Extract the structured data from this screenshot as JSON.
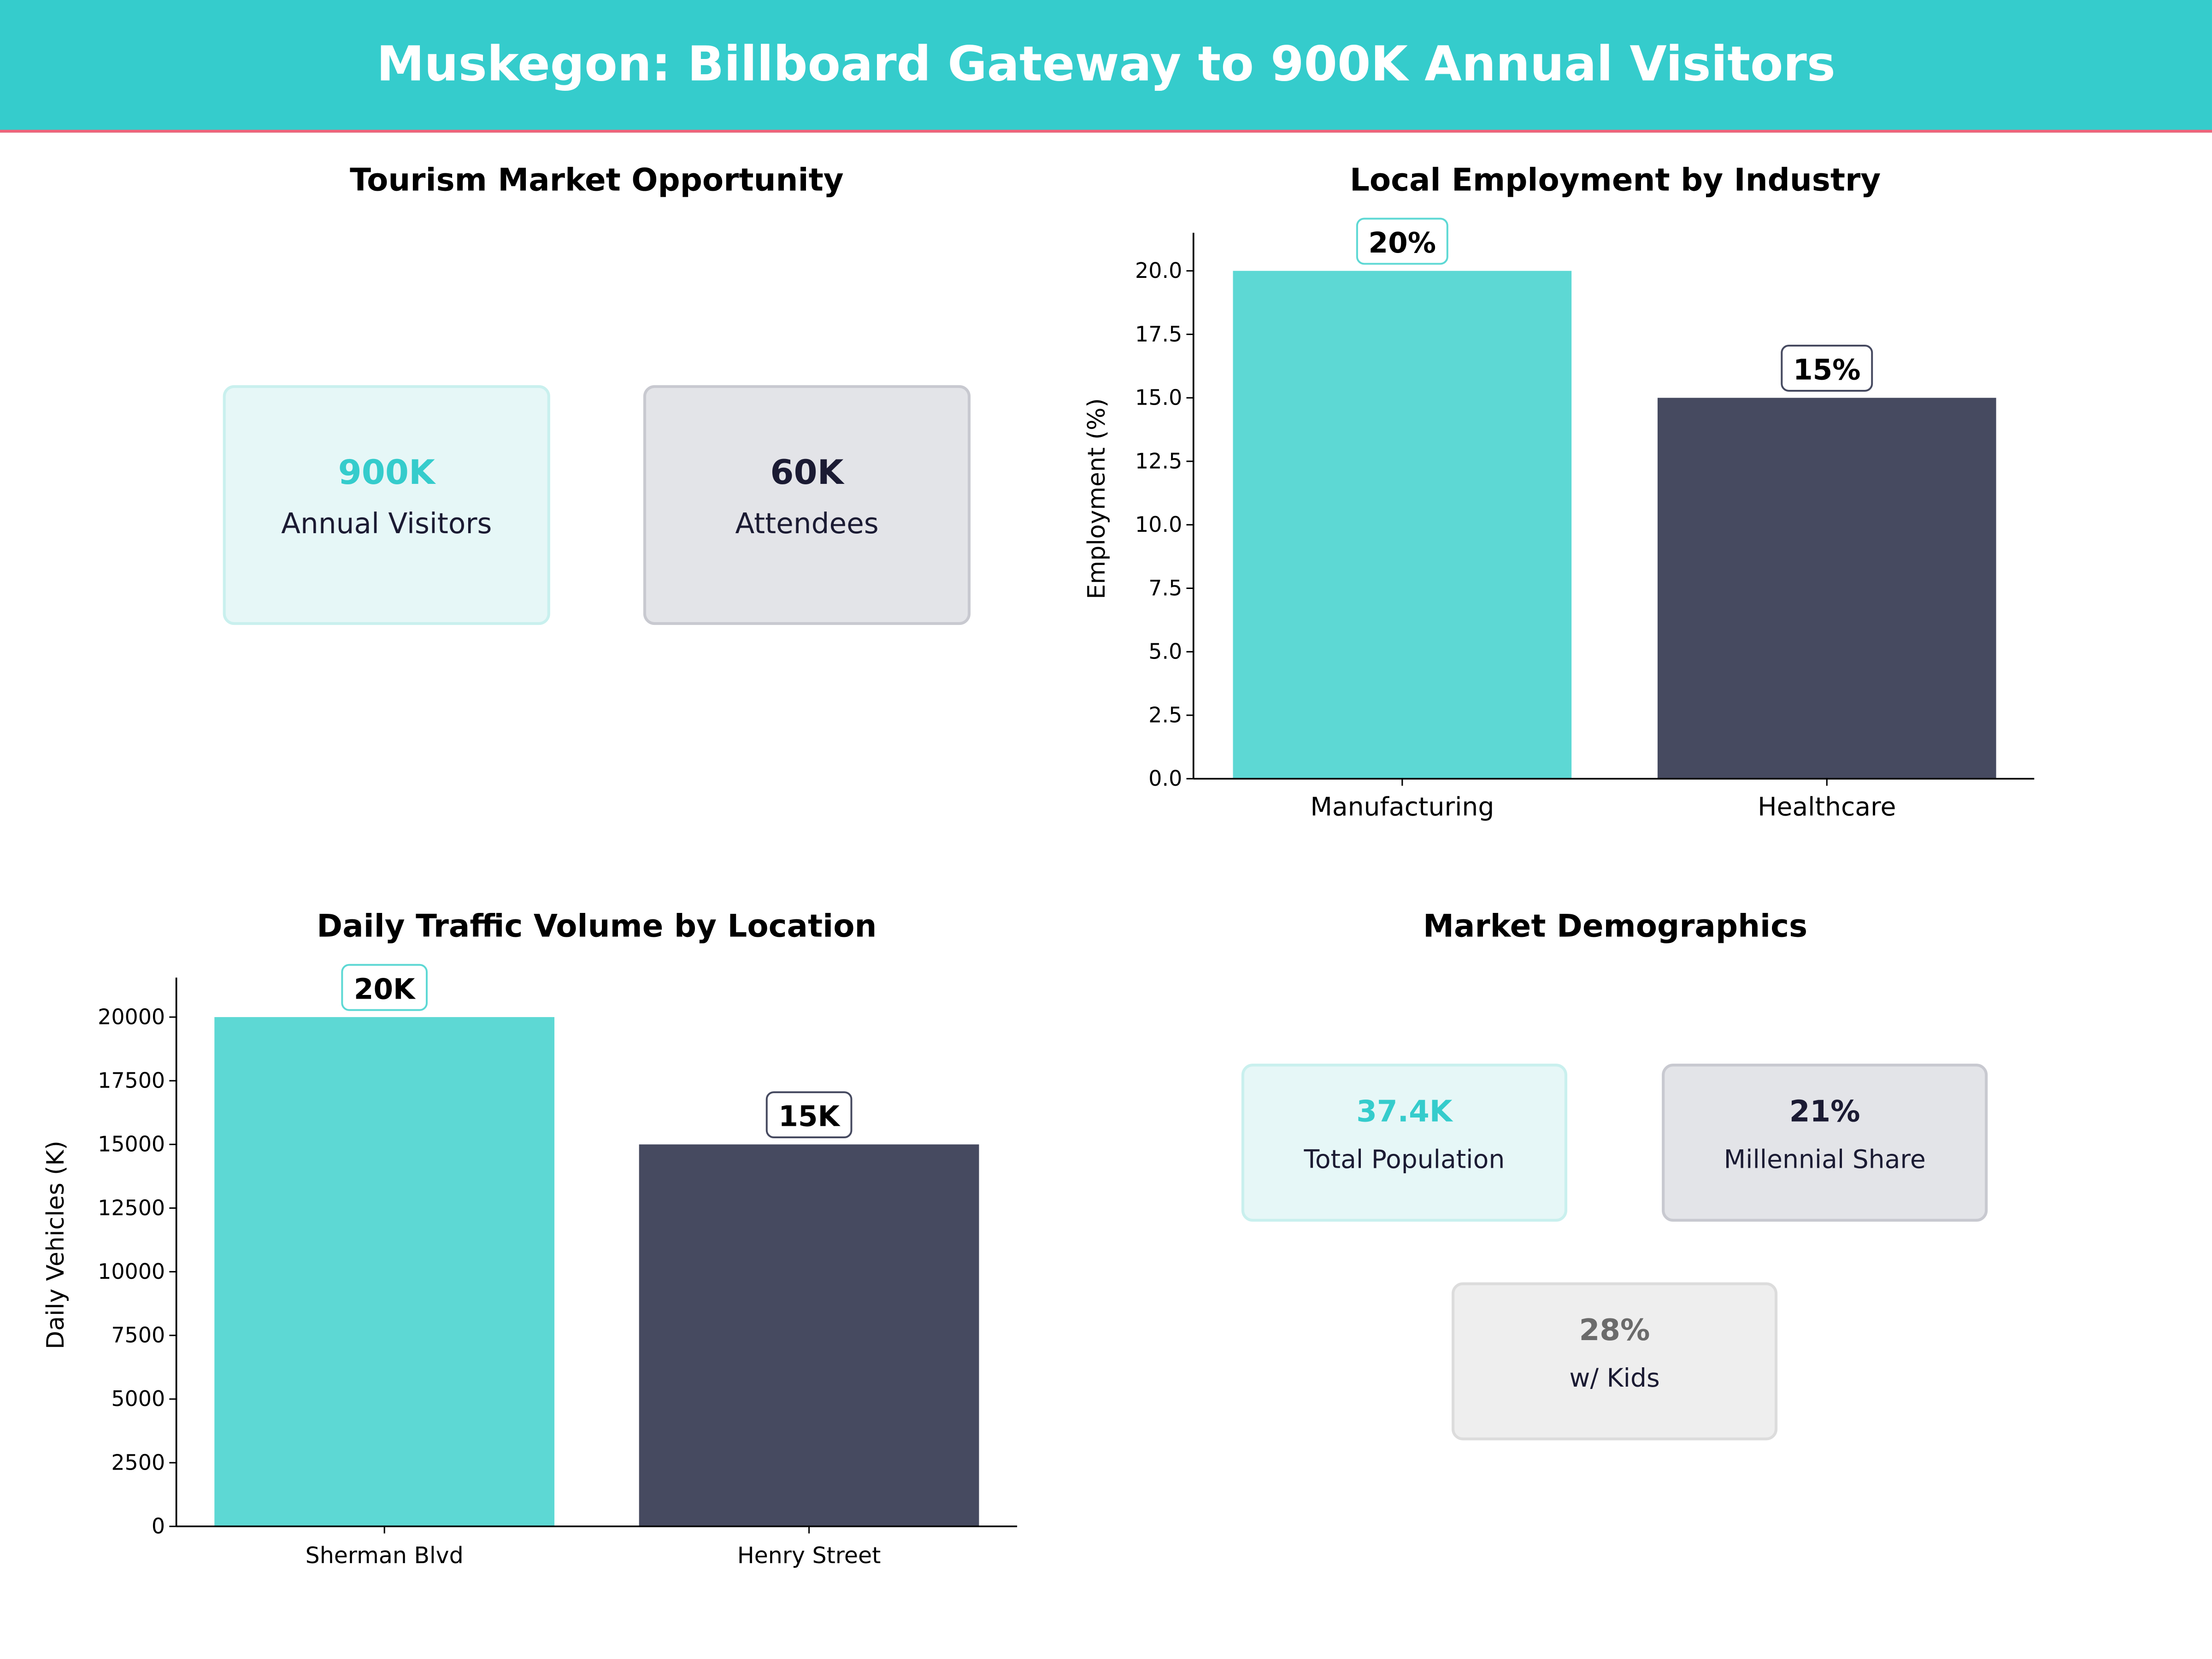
{
  "header": {
    "title": "Muskegon: Billboard Gateway to 900K Annual Visitors"
  },
  "colors": {
    "header": "#35cccc",
    "accent_line": "#f0637a",
    "teal": "#5dd8d4",
    "navy": "#464a60",
    "teal_text": "#35cccc",
    "navy_text": "#1b1b33",
    "gray_text": "#6b6b6b"
  },
  "tourism": {
    "title": "Tourism Market Opportunity",
    "cards": [
      {
        "value": "900K",
        "label": "Annual Visitors"
      },
      {
        "value": "60K",
        "label": "Attendees"
      }
    ]
  },
  "demographics": {
    "title": "Market Demographics",
    "cards": [
      {
        "value": "37.4K",
        "label": "Total Population"
      },
      {
        "value": "21%",
        "label": "Millennial Share"
      },
      {
        "value": "28%",
        "label": "w/ Kids"
      }
    ]
  },
  "chart_data": [
    {
      "type": "bar",
      "title": "Local Employment by Industry",
      "ylabel": "Employment (%)",
      "xlabel": "",
      "categories": [
        "Manufacturing",
        "Healthcare"
      ],
      "values": [
        20,
        15
      ],
      "data_labels": [
        "20%",
        "15%"
      ],
      "ylim": [
        0,
        21.5
      ],
      "yticks": [
        "0.0",
        "2.5",
        "5.0",
        "7.5",
        "10.0",
        "12.5",
        "15.0",
        "17.5",
        "20.0"
      ],
      "colors": [
        "#5dd8d4",
        "#464a60"
      ],
      "grid": false
    },
    {
      "type": "bar",
      "title": "Daily Traffic Volume by Location",
      "ylabel": "Daily Vehicles (K)",
      "xlabel": "",
      "categories": [
        "Sherman Blvd",
        "Henry Street"
      ],
      "values": [
        20000,
        15000
      ],
      "data_labels": [
        "20K",
        "15K"
      ],
      "ylim": [
        0,
        21550
      ],
      "yticks": [
        "0",
        "2500",
        "5000",
        "7500",
        "10000",
        "12500",
        "15000",
        "17500",
        "20000"
      ],
      "colors": [
        "#5dd8d4",
        "#464a60"
      ],
      "grid": false
    }
  ]
}
